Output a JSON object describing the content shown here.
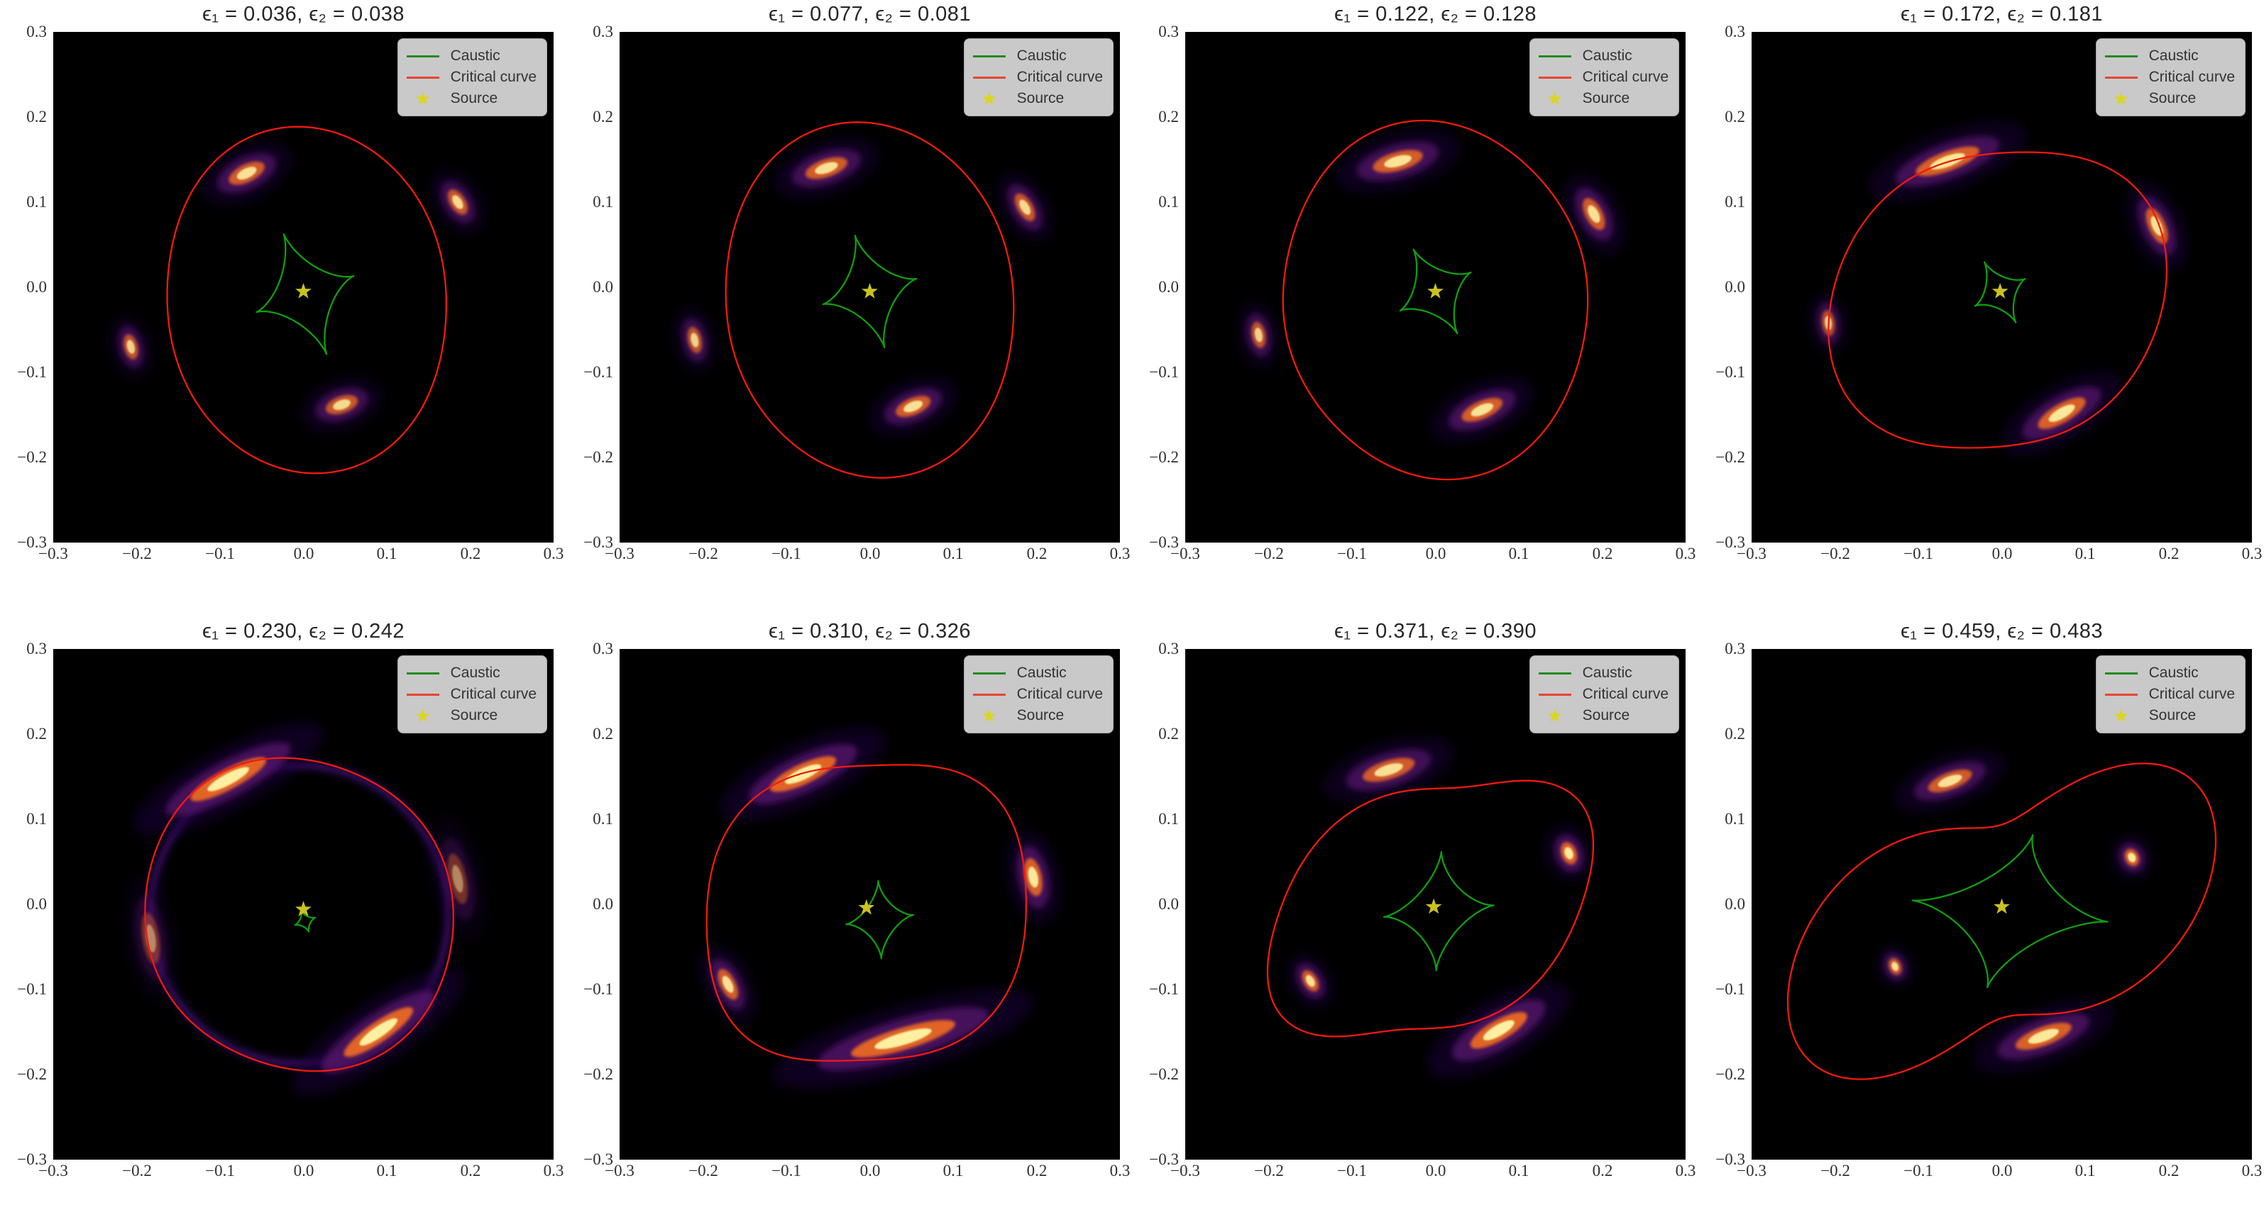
{
  "figure_title": "",
  "chart_data": {
    "type": "heatmap",
    "description_fields": {
      "legend": {
        "items": [
          {
            "label": "Caustic",
            "color": "#218a21",
            "marker": "line"
          },
          {
            "label": "Critical curve",
            "color": "#e8442f",
            "marker": "line"
          },
          {
            "label": "Source",
            "color": "#ddd41f",
            "marker": "star"
          }
        ]
      },
      "axes": {
        "xlim": [
          -0.3,
          0.3
        ],
        "ylim": [
          -0.3,
          0.3
        ],
        "xtick_labels": [
          "−0.3",
          "−0.2",
          "−0.1",
          "0.0",
          "0.1",
          "0.2",
          "0.3"
        ],
        "ytick_labels": [
          "0.3",
          "0.2",
          "0.1",
          "0.0",
          "−0.1",
          "−0.2",
          "−0.3"
        ],
        "grid": false
      }
    },
    "colors": {
      "panel_background": "#000000",
      "critical_curve": "#f21a0d",
      "caustic": "#0f9e0f",
      "source_star": "#c9c21f",
      "legend_background": "#c9c9c9",
      "text": "#2b2b2b"
    },
    "panels": [
      {
        "title": "ϵ₁ = 0.036, ϵ₂ = 0.038",
        "eps1": 0.036,
        "eps2": 0.038,
        "critical": {
          "cx": 0.004,
          "cy": -0.015,
          "R": 0.185,
          "e2": 0.1,
          "p2": 97,
          "e4": 0.008,
          "p4": 20,
          "shear": 0
        },
        "caustic": {
          "cx": 0.002,
          "cy": -0.008,
          "A": 0.062,
          "B": 0.075,
          "rot": 20,
          "shear": 0
        },
        "source": {
          "x": 0.0,
          "y": -0.005
        },
        "images": [
          [
            -0.068,
            0.134,
            0.075,
            0.021,
            0.9
          ],
          [
            0.185,
            0.1,
            0.055,
            0.018,
            0.85
          ],
          [
            -0.207,
            -0.07,
            0.05,
            0.016,
            0.8
          ],
          [
            0.046,
            -0.138,
            0.065,
            0.02,
            0.85
          ]
        ]
      },
      {
        "title": "ϵ₁ = 0.077, ϵ₂ = 0.081",
        "eps1": 0.077,
        "eps2": 0.081,
        "critical": {
          "cx": 0.0,
          "cy": -0.015,
          "R": 0.19,
          "e2": 0.1,
          "p2": 100,
          "e4": 0.01,
          "p4": 20,
          "shear": 0
        },
        "caustic": {
          "cx": 0.0,
          "cy": -0.005,
          "A": 0.058,
          "B": 0.068,
          "rot": 15,
          "shear": 0
        },
        "source": {
          "x": 0.0,
          "y": -0.005
        },
        "images": [
          [
            -0.052,
            0.14,
            0.085,
            0.021,
            0.9
          ],
          [
            0.186,
            0.094,
            0.06,
            0.018,
            0.85
          ],
          [
            -0.21,
            -0.062,
            0.052,
            0.016,
            0.8
          ],
          [
            0.052,
            -0.14,
            0.072,
            0.02,
            0.9
          ]
        ]
      },
      {
        "title": "ϵ₁ = 0.122, ϵ₂ = 0.128",
        "eps1": 0.122,
        "eps2": 0.128,
        "critical": {
          "cx": 0.0,
          "cy": -0.015,
          "R": 0.195,
          "e2": 0.075,
          "p2": 100,
          "e4": 0.015,
          "p4": 15,
          "shear": 0
        },
        "caustic": {
          "cx": 0.0,
          "cy": -0.005,
          "A": 0.048,
          "B": 0.056,
          "rot": 28,
          "shear": 0
        },
        "source": {
          "x": 0.0,
          "y": -0.005
        },
        "images": [
          [
            -0.045,
            0.148,
            0.1,
            0.022,
            0.92
          ],
          [
            0.19,
            0.086,
            0.068,
            0.02,
            0.9
          ],
          [
            -0.212,
            -0.056,
            0.052,
            0.016,
            0.8
          ],
          [
            0.056,
            -0.144,
            0.085,
            0.021,
            0.92
          ]
        ]
      },
      {
        "title": "ϵ₁ = 0.172, ϵ₂ = 0.181",
        "eps1": 0.172,
        "eps2": 0.181,
        "critical": {
          "cx": -0.005,
          "cy": -0.015,
          "R": 0.19,
          "e2": 0.075,
          "p2": 12,
          "e4": 0.02,
          "p4": 40,
          "shear": 0.1
        },
        "caustic": {
          "cx": -0.002,
          "cy": -0.006,
          "A": 0.034,
          "B": 0.04,
          "rot": 28,
          "shear": 0
        },
        "source": {
          "x": -0.002,
          "y": -0.005
        },
        "images": [
          [
            -0.065,
            0.148,
            0.13,
            0.023,
            0.95
          ],
          [
            0.186,
            0.072,
            0.075,
            0.02,
            0.9
          ],
          [
            -0.208,
            -0.042,
            0.05,
            0.015,
            0.75
          ],
          [
            0.072,
            -0.148,
            0.105,
            0.022,
            0.95
          ]
        ]
      },
      {
        "title": "ϵ₁ = 0.230, ϵ₂ = 0.242",
        "eps1": 0.23,
        "eps2": 0.242,
        "critical": {
          "cx": -0.005,
          "cy": -0.012,
          "R": 0.185,
          "e2": 0.03,
          "p2": 140,
          "e4": 0.012,
          "p4": 30,
          "shear": 0
        },
        "caustic": {
          "cx": 0.002,
          "cy": -0.02,
          "A": 0.013,
          "B": 0.013,
          "rot": 20,
          "shear": 0
        },
        "source": {
          "x": 0.0,
          "y": -0.006
        },
        "ring": {
          "r": 0.178,
          "cx": -0.005,
          "cy": -0.012,
          "opacity": 0.5
        },
        "images": [
          [
            -0.09,
            0.147,
            0.165,
            0.024,
            1.0
          ],
          [
            0.09,
            -0.15,
            0.16,
            0.024,
            1.0
          ],
          [
            0.185,
            0.03,
            0.1,
            0.02,
            0.45
          ],
          [
            -0.183,
            -0.04,
            0.1,
            0.02,
            0.45
          ]
        ]
      },
      {
        "title": "ϵ₁ = 0.310, ϵ₂ = 0.326",
        "eps1": 0.31,
        "eps2": 0.326,
        "critical": {
          "cx": -0.004,
          "cy": -0.01,
          "R": 0.19,
          "e2": 0.05,
          "p2": 170,
          "e4": 0.042,
          "p4": 50,
          "shear": 0.12
        },
        "caustic": {
          "cx": 0.012,
          "cy": -0.018,
          "A": 0.04,
          "B": 0.046,
          "rot": 8,
          "shear": 0.1
        },
        "source": {
          "x": -0.004,
          "y": -0.004
        },
        "images": [
          [
            -0.08,
            0.153,
            0.14,
            0.024,
            1.0
          ],
          [
            0.196,
            0.032,
            0.075,
            0.02,
            0.95
          ],
          [
            -0.17,
            -0.094,
            0.065,
            0.018,
            0.9
          ],
          [
            0.04,
            -0.158,
            0.21,
            0.026,
            1.0
          ]
        ]
      },
      {
        "title": "ϵ₁ = 0.371, ϵ₂ = 0.390",
        "eps1": 0.371,
        "eps2": 0.39,
        "critical": {
          "cx": -0.006,
          "cy": -0.005,
          "R": 0.17,
          "e2": 0.11,
          "p2": 8,
          "e4": 0.05,
          "p4": 48,
          "shear": 0.35
        },
        "caustic": {
          "cx": 0.004,
          "cy": -0.008,
          "A": 0.065,
          "B": 0.07,
          "rot": 6,
          "shear": 0.15
        },
        "source": {
          "x": -0.002,
          "y": -0.003
        },
        "images": [
          [
            -0.056,
            0.158,
            0.105,
            0.022,
            0.9
          ],
          [
            0.16,
            0.06,
            0.045,
            0.018,
            0.95
          ],
          [
            -0.15,
            -0.09,
            0.045,
            0.016,
            0.9
          ],
          [
            0.076,
            -0.148,
            0.125,
            0.024,
            1.0
          ]
        ]
      },
      {
        "title": "ϵ₁ = 0.459, ϵ₂ = 0.483",
        "eps1": 0.459,
        "eps2": 0.483,
        "critical": {
          "cx": 0.0,
          "cy": -0.02,
          "R": 0.19,
          "e2": 0.32,
          "p2": 22,
          "e4": 0.05,
          "p4": 60,
          "shear": 0.35
        },
        "caustic": {
          "cx": 0.01,
          "cy": -0.008,
          "A": 0.12,
          "B": 0.09,
          "rot": -6,
          "shear": 0.2
        },
        "source": {
          "x": 0.0,
          "y": -0.003
        },
        "images": [
          [
            -0.062,
            0.145,
            0.09,
            0.02,
            0.9
          ],
          [
            0.156,
            0.055,
            0.035,
            0.016,
            0.95
          ],
          [
            -0.128,
            -0.073,
            0.033,
            0.014,
            0.9
          ],
          [
            0.05,
            -0.155,
            0.115,
            0.022,
            0.95
          ]
        ]
      }
    ]
  }
}
